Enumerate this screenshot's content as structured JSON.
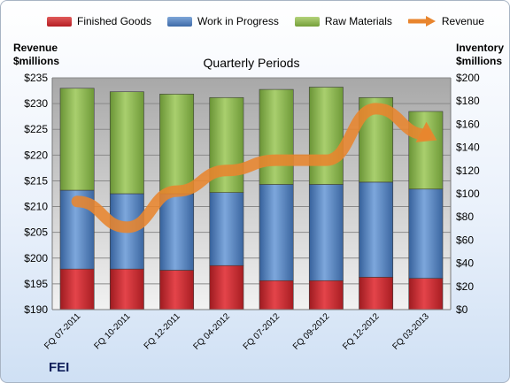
{
  "company": "FEI",
  "chart_data": {
    "type": "bar",
    "stacked": true,
    "title": "Quarterly Periods",
    "left_axis_label": [
      "Revenue",
      "$millions"
    ],
    "right_axis_label": [
      "Inventory",
      "$millions"
    ],
    "categories": [
      "FQ 07-2011",
      "FQ 10-2011",
      "FQ 12-2011",
      "FQ 04-2012",
      "FQ 07-2012",
      "FQ 09-2012",
      "FQ 12-2012",
      "FQ 03-2013"
    ],
    "series": [
      {
        "name": "Finished Goods",
        "axis": "right",
        "color": "#c0262c",
        "values": [
          35,
          35,
          34,
          38,
          25,
          25,
          28,
          27
        ]
      },
      {
        "name": "Work in Progress",
        "axis": "right",
        "color": "#4f7fbd",
        "values": [
          68,
          65,
          66,
          63,
          83,
          83,
          82,
          77
        ]
      },
      {
        "name": "Raw Materials",
        "axis": "right",
        "color": "#8db64a",
        "values": [
          88,
          88,
          86,
          82,
          82,
          84,
          73,
          67
        ]
      },
      {
        "name": "Revenue",
        "axis": "left",
        "type": "line",
        "color": "#e8852e",
        "values": [
          211,
          206,
          213,
          217,
          219,
          219,
          229,
          224
        ]
      }
    ],
    "y_left": {
      "min": 190,
      "max": 235,
      "step": 5,
      "ticks": [
        "$190",
        "$195",
        "$200",
        "$205",
        "$210",
        "$215",
        "$220",
        "$225",
        "$230",
        "$235"
      ]
    },
    "y_right": {
      "min": 0,
      "max": 200,
      "step": 20,
      "ticks": [
        "$0",
        "$20",
        "$40",
        "$60",
        "$80",
        "$100",
        "$120",
        "$140",
        "$160",
        "$180",
        "$200"
      ]
    },
    "grid": true,
    "legend_position": "top"
  }
}
